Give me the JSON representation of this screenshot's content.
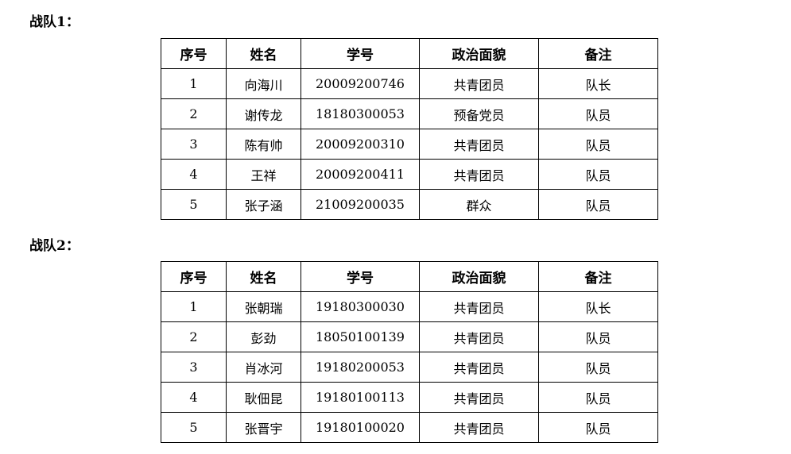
{
  "teams": [
    {
      "title": "战队1：",
      "headers": [
        "序号",
        "姓名",
        "学号",
        "政治面貌",
        "备注"
      ],
      "rows": [
        [
          "1",
          "向海川",
          "20009200746",
          "共青团员",
          "队长"
        ],
        [
          "2",
          "谢传龙",
          "18180300053",
          "预备党员",
          "队员"
        ],
        [
          "3",
          "陈有帅",
          "20009200310",
          "共青团员",
          "队员"
        ],
        [
          "4",
          "王祥",
          "20009200411",
          "共青团员",
          "队员"
        ],
        [
          "5",
          "张子涵",
          "21009200035",
          "群众",
          "队员"
        ]
      ]
    },
    {
      "title": "战队2：",
      "headers": [
        "序号",
        "姓名",
        "学号",
        "政治面貌",
        "备注"
      ],
      "rows": [
        [
          "1",
          "张朝瑞",
          "19180300030",
          "共青团员",
          "队长"
        ],
        [
          "2",
          "彭劲",
          "18050100139",
          "共青团员",
          "队员"
        ],
        [
          "3",
          "肖冰河",
          "19180200053",
          "共青团员",
          "队员"
        ],
        [
          "4",
          "耿佃昆",
          "19180100113",
          "共青团员",
          "队员"
        ],
        [
          "5",
          "张晋宇",
          "19180100020",
          "共青团员",
          "队员"
        ]
      ]
    }
  ]
}
